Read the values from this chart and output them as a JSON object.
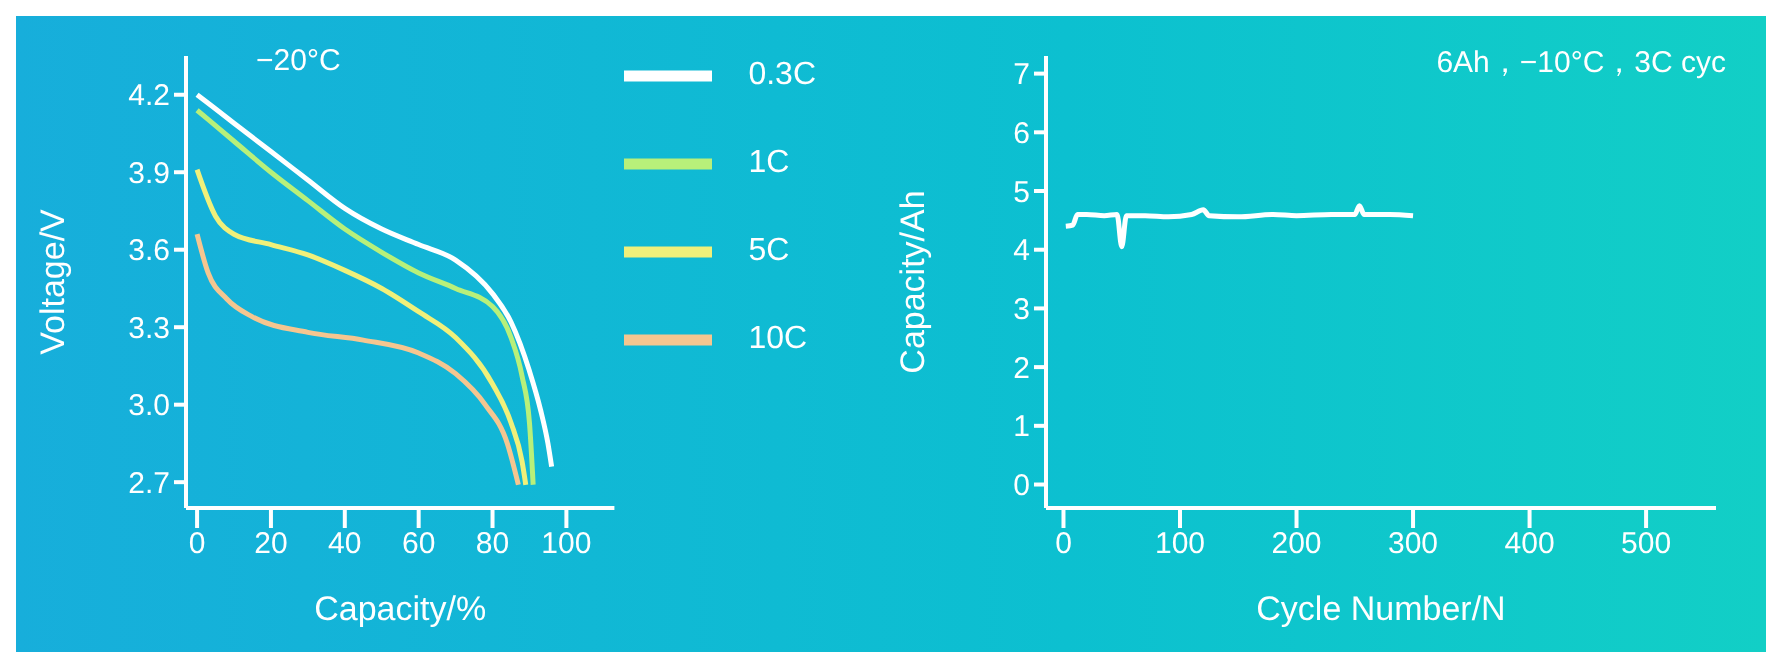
{
  "chart_data": [
    {
      "type": "line",
      "xlabel": "Capacity/%",
      "ylabel": "Voltage/V",
      "annotations": [
        "−20°C"
      ],
      "legend": "top right",
      "xlim": [
        -3,
        113
      ],
      "xticks": [
        0,
        20,
        40,
        60,
        80,
        100
      ],
      "ylim": [
        2.6,
        4.35
      ],
      "yticks": [
        2.7,
        {
          "value": 3,
          "label": "3.0"
        },
        3.3,
        3.6,
        3.9,
        4.2
      ],
      "series": [
        {
          "name": "0.3C",
          "color": "#ffffff",
          "x": [
            0,
            10,
            20,
            30,
            40,
            50,
            60,
            70,
            80,
            85,
            90,
            93,
            95,
            96
          ],
          "values": [
            4.2,
            4.09,
            3.98,
            3.87,
            3.76,
            3.68,
            3.62,
            3.56,
            3.43,
            3.32,
            3.13,
            2.98,
            2.85,
            2.76
          ]
        },
        {
          "name": "1C",
          "color": "#b8f07a",
          "x": [
            0,
            10,
            20,
            30,
            40,
            50,
            60,
            70,
            80,
            85,
            88,
            90,
            91
          ],
          "values": [
            4.14,
            4.02,
            3.9,
            3.79,
            3.68,
            3.59,
            3.51,
            3.45,
            3.38,
            3.26,
            3.11,
            2.93,
            2.69
          ]
        },
        {
          "name": "5C",
          "color": "#f0f07a",
          "x": [
            0,
            5,
            10,
            20,
            30,
            40,
            50,
            60,
            70,
            80,
            85,
            88,
            89
          ],
          "values": [
            3.91,
            3.73,
            3.66,
            3.62,
            3.58,
            3.52,
            3.45,
            3.36,
            3.26,
            3.08,
            2.93,
            2.78,
            2.69
          ]
        },
        {
          "name": "10C",
          "color": "#f5c690",
          "x": [
            0,
            3,
            8,
            15,
            30,
            45,
            60,
            70,
            78,
            84,
            87
          ],
          "values": [
            3.66,
            3.51,
            3.41,
            3.34,
            3.28,
            3.25,
            3.2,
            3.12,
            3.0,
            2.85,
            2.69
          ]
        }
      ]
    },
    {
      "type": "line",
      "xlabel": "Cycle Number/N",
      "ylabel": "Capacity/Ah",
      "annotations": [
        "6Ah，−10°C，3C cyc"
      ],
      "xlim": [
        -15,
        560
      ],
      "xticks": [
        0,
        100,
        200,
        300,
        400,
        500
      ],
      "ylim": [
        -0.4,
        7.3
      ],
      "yticks": [
        0,
        1,
        2,
        3,
        4,
        5,
        6,
        7
      ],
      "series": [
        {
          "color": "#ffffff",
          "x": [
            2,
            8,
            12,
            20,
            35,
            46,
            50,
            54,
            70,
            90,
            110,
            120,
            125,
            150,
            180,
            200,
            230,
            250,
            254,
            258,
            280,
            300
          ],
          "values": [
            4.4,
            4.42,
            4.6,
            4.6,
            4.58,
            4.6,
            4.05,
            4.58,
            4.58,
            4.56,
            4.6,
            4.68,
            4.58,
            4.56,
            4.6,
            4.58,
            4.6,
            4.6,
            4.75,
            4.6,
            4.6,
            4.58
          ]
        }
      ]
    }
  ]
}
